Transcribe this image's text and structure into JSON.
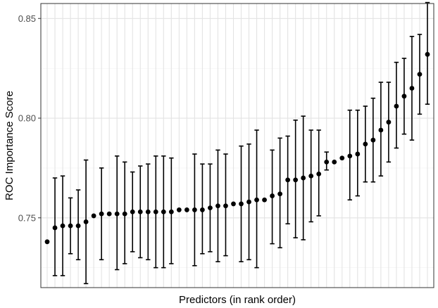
{
  "chart_data": {
    "type": "scatter",
    "xlabel": "Predictors (in rank order)",
    "ylabel": "ROC Importance Score",
    "ylim": [
      0.715,
      0.8575
    ],
    "yticks": [
      0.75,
      0.8,
      0.85
    ],
    "ytick_labels": [
      "0.75",
      "0.80",
      "0.85"
    ],
    "grid": true,
    "legend": "none",
    "colors": {
      "point": "#000000",
      "errorbar": "#000000",
      "grid": "#e3e3e3",
      "background": "#ffffff"
    },
    "series": [
      {
        "points": [
          {
            "x": 1,
            "y": 0.738,
            "lo": null,
            "hi": null
          },
          {
            "x": 2,
            "y": 0.745,
            "lo": 0.721,
            "hi": 0.77
          },
          {
            "x": 3,
            "y": 0.746,
            "lo": 0.721,
            "hi": 0.771
          },
          {
            "x": 4,
            "y": 0.746,
            "lo": 0.732,
            "hi": 0.76
          },
          {
            "x": 5,
            "y": 0.746,
            "lo": 0.729,
            "hi": 0.764
          },
          {
            "x": 6,
            "y": 0.748,
            "lo": 0.717,
            "hi": 0.779
          },
          {
            "x": 7,
            "y": 0.751,
            "lo": null,
            "hi": null
          },
          {
            "x": 8,
            "y": 0.752,
            "lo": 0.729,
            "hi": 0.775
          },
          {
            "x": 9,
            "y": 0.752,
            "lo": null,
            "hi": null
          },
          {
            "x": 10,
            "y": 0.752,
            "lo": 0.724,
            "hi": 0.781
          },
          {
            "x": 11,
            "y": 0.752,
            "lo": 0.727,
            "hi": 0.778
          },
          {
            "x": 12,
            "y": 0.753,
            "lo": 0.733,
            "hi": 0.773
          },
          {
            "x": 13,
            "y": 0.753,
            "lo": 0.73,
            "hi": 0.776
          },
          {
            "x": 14,
            "y": 0.753,
            "lo": 0.729,
            "hi": 0.777
          },
          {
            "x": 15,
            "y": 0.753,
            "lo": 0.725,
            "hi": 0.781
          },
          {
            "x": 16,
            "y": 0.753,
            "lo": 0.725,
            "hi": 0.781
          },
          {
            "x": 17,
            "y": 0.753,
            "lo": 0.727,
            "hi": 0.78
          },
          {
            "x": 18,
            "y": 0.754,
            "lo": null,
            "hi": null
          },
          {
            "x": 19,
            "y": 0.754,
            "lo": null,
            "hi": null
          },
          {
            "x": 20,
            "y": 0.754,
            "lo": 0.726,
            "hi": 0.782
          },
          {
            "x": 21,
            "y": 0.754,
            "lo": 0.732,
            "hi": 0.777
          },
          {
            "x": 22,
            "y": 0.755,
            "lo": 0.733,
            "hi": 0.777
          },
          {
            "x": 23,
            "y": 0.756,
            "lo": 0.728,
            "hi": 0.784
          },
          {
            "x": 24,
            "y": 0.756,
            "lo": 0.731,
            "hi": 0.782
          },
          {
            "x": 25,
            "y": 0.757,
            "lo": null,
            "hi": null
          },
          {
            "x": 26,
            "y": 0.757,
            "lo": 0.728,
            "hi": 0.786
          },
          {
            "x": 27,
            "y": 0.758,
            "lo": 0.729,
            "hi": 0.787
          },
          {
            "x": 28,
            "y": 0.759,
            "lo": 0.725,
            "hi": 0.794
          },
          {
            "x": 29,
            "y": 0.759,
            "lo": null,
            "hi": null
          },
          {
            "x": 30,
            "y": 0.761,
            "lo": 0.737,
            "hi": 0.784
          },
          {
            "x": 31,
            "y": 0.762,
            "lo": 0.735,
            "hi": 0.79
          },
          {
            "x": 32,
            "y": 0.769,
            "lo": 0.747,
            "hi": 0.791
          },
          {
            "x": 33,
            "y": 0.769,
            "lo": 0.74,
            "hi": 0.799
          },
          {
            "x": 34,
            "y": 0.77,
            "lo": 0.739,
            "hi": 0.801
          },
          {
            "x": 35,
            "y": 0.771,
            "lo": 0.748,
            "hi": 0.794
          },
          {
            "x": 36,
            "y": 0.772,
            "lo": 0.751,
            "hi": 0.794
          },
          {
            "x": 37,
            "y": 0.778,
            "lo": 0.774,
            "hi": 0.783
          },
          {
            "x": 38,
            "y": 0.778,
            "lo": null,
            "hi": null
          },
          {
            "x": 39,
            "y": 0.78,
            "lo": null,
            "hi": null
          },
          {
            "x": 40,
            "y": 0.781,
            "lo": 0.759,
            "hi": 0.804
          },
          {
            "x": 41,
            "y": 0.782,
            "lo": 0.761,
            "hi": 0.804
          },
          {
            "x": 42,
            "y": 0.787,
            "lo": 0.768,
            "hi": 0.806
          },
          {
            "x": 43,
            "y": 0.789,
            "lo": 0.768,
            "hi": 0.81
          },
          {
            "x": 44,
            "y": 0.794,
            "lo": 0.771,
            "hi": 0.818
          },
          {
            "x": 45,
            "y": 0.798,
            "lo": 0.778,
            "hi": 0.818
          },
          {
            "x": 46,
            "y": 0.806,
            "lo": 0.785,
            "hi": 0.828
          },
          {
            "x": 47,
            "y": 0.811,
            "lo": 0.792,
            "hi": 0.83
          },
          {
            "x": 48,
            "y": 0.815,
            "lo": 0.789,
            "hi": 0.841
          },
          {
            "x": 49,
            "y": 0.822,
            "lo": 0.802,
            "hi": 0.842
          },
          {
            "x": 50,
            "y": 0.832,
            "lo": 0.807,
            "hi": 0.858
          }
        ]
      }
    ]
  }
}
